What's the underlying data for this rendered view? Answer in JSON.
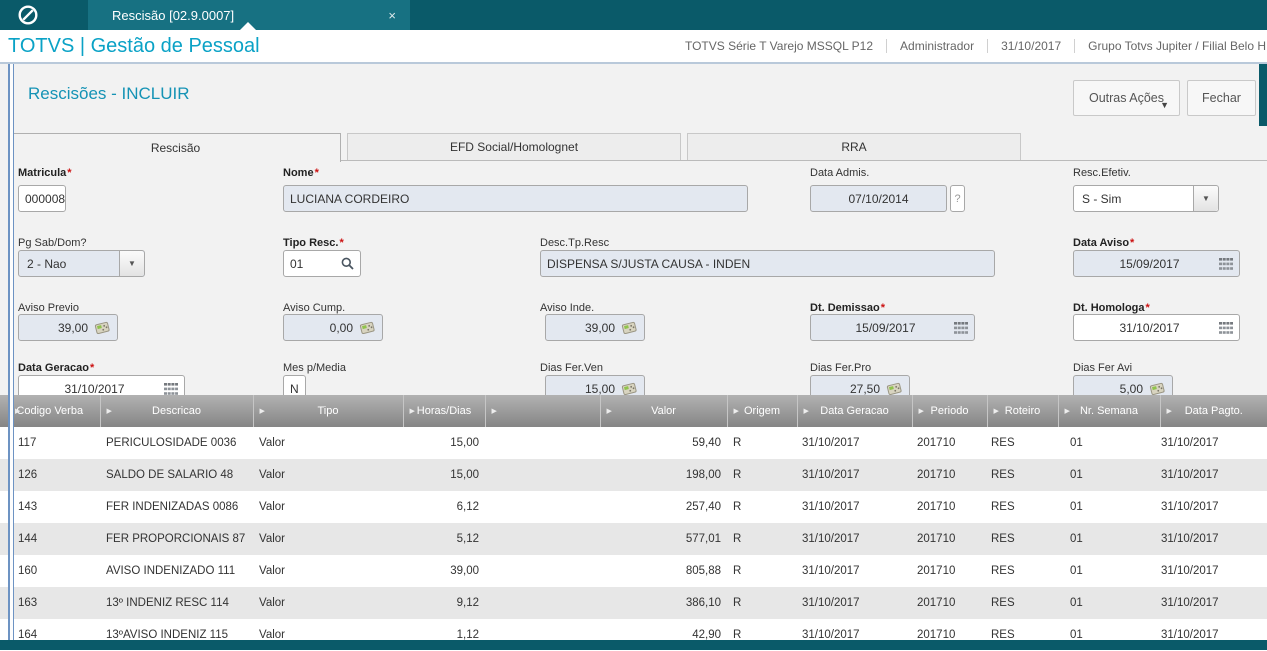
{
  "required_mark": "*",
  "icons": {
    "close": "×",
    "dropdown_arrow": "▼",
    "header_arrow": "▶",
    "help": "?",
    "totvs_logo": "circle-slash",
    "calendar": "calendar-grid",
    "calculator": "calculator",
    "search": "magnifier"
  },
  "topbar": {
    "tab_label": "Rescisão [02.9.0007]"
  },
  "header": {
    "brand": "TOTVS | Gestão de Pessoal",
    "info": [
      "TOTVS Série T Varejo MSSQL P12",
      "Administrador",
      "31/10/2017",
      "Grupo Totvs Jupiter / Filial Belo H"
    ]
  },
  "page": {
    "title": "Rescisões - INCLUIR",
    "buttons": {
      "outras_acoes": "Outras Ações",
      "fechar": "Fechar"
    }
  },
  "tabs": [
    {
      "label": "Rescisão"
    },
    {
      "label": "EFD Social/Homolognet"
    },
    {
      "label": "RRA"
    }
  ],
  "form": {
    "matricula": {
      "label": "Matricula",
      "value": "000008",
      "required": true
    },
    "nome": {
      "label": "Nome",
      "value": "LUCIANA CORDEIRO",
      "required": true
    },
    "data_admis": {
      "label": "Data Admis.",
      "value": "07/10/2014",
      "required": false
    },
    "resc_efetiv": {
      "label": "Resc.Efetiv.",
      "value": "S - Sim",
      "required": false
    },
    "pg_sab_dom": {
      "label": "Pg Sab/Dom?",
      "value": "2 - Nao",
      "required": false
    },
    "tipo_resc": {
      "label": "Tipo Resc.",
      "value": "01",
      "required": true
    },
    "desc_tp_resc": {
      "label": "Desc.Tp.Resc",
      "value": "DISPENSA S/JUSTA CAUSA - INDEN",
      "required": false
    },
    "data_aviso": {
      "label": "Data Aviso",
      "value": "15/09/2017",
      "required": true
    },
    "aviso_previo": {
      "label": "Aviso Previo",
      "value": "39,00",
      "required": false
    },
    "aviso_cump": {
      "label": "Aviso Cump.",
      "value": "0,00",
      "required": false
    },
    "aviso_inde": {
      "label": "Aviso Inde.",
      "value": "39,00",
      "required": false
    },
    "dt_demissao": {
      "label": "Dt. Demissao",
      "value": "15/09/2017",
      "required": true
    },
    "dt_homologa": {
      "label": "Dt. Homologa",
      "value": "31/10/2017",
      "required": true
    },
    "data_geracao": {
      "label": "Data Geracao",
      "value": "31/10/2017",
      "required": true
    },
    "mes_p_media": {
      "label": "Mes p/Media",
      "value": "N",
      "required": false
    },
    "dias_fer_ven": {
      "label": "Dias Fer.Ven",
      "value": "15,00",
      "required": false
    },
    "dias_fer_pro": {
      "label": "Dias Fer.Pro",
      "value": "27,50",
      "required": false
    },
    "dias_fer_avi": {
      "label": "Dias Fer Avi",
      "value": "5,00",
      "required": false
    }
  },
  "table": {
    "columns": [
      {
        "label": "Codigo Verba",
        "width": 100,
        "align": "left",
        "pad": 18
      },
      {
        "label": "Descricao",
        "width": 153,
        "align": "left",
        "pad": 6
      },
      {
        "label": "Tipo",
        "width": 150,
        "align": "left",
        "pad": 6
      },
      {
        "label": "Horas/Dias",
        "width": 82,
        "align": "right",
        "pad": 6
      },
      {
        "label": "",
        "width": 115,
        "align": "left",
        "pad": 6
      },
      {
        "label": "Valor",
        "width": 127,
        "align": "right",
        "pad": 6
      },
      {
        "label": "Origem",
        "width": 70,
        "align": "left",
        "pad": 6
      },
      {
        "label": "Data Geracao",
        "width": 115,
        "align": "left",
        "pad": 5
      },
      {
        "label": "Periodo",
        "width": 75,
        "align": "left",
        "pad": 5
      },
      {
        "label": "Roteiro",
        "width": 71,
        "align": "left",
        "pad": 4
      },
      {
        "label": "Nr. Semana",
        "width": 102,
        "align": "left",
        "pad": 12
      },
      {
        "label": "Data Pagto.",
        "width": 107,
        "align": "right",
        "pad": 57
      }
    ],
    "rows": [
      [
        "117",
        "PERICULOSIDADE 0036",
        "Valor",
        "15,00",
        "",
        "59,40",
        "R",
        "31/10/2017",
        "201710",
        "RES",
        "01",
        "31/10/2017"
      ],
      [
        "126",
        "SALDO DE SALARIO 48",
        "Valor",
        "15,00",
        "",
        "198,00",
        "R",
        "31/10/2017",
        "201710",
        "RES",
        "01",
        "31/10/2017"
      ],
      [
        "143",
        "FER INDENIZADAS 0086",
        "Valor",
        "6,12",
        "",
        "257,40",
        "R",
        "31/10/2017",
        "201710",
        "RES",
        "01",
        "31/10/2017"
      ],
      [
        "144",
        "FER PROPORCIONAIS 87",
        "Valor",
        "5,12",
        "",
        "577,01",
        "R",
        "31/10/2017",
        "201710",
        "RES",
        "01",
        "31/10/2017"
      ],
      [
        "160",
        "AVISO INDENIZADO 111",
        "Valor",
        "39,00",
        "",
        "805,88",
        "R",
        "31/10/2017",
        "201710",
        "RES",
        "01",
        "31/10/2017"
      ],
      [
        "163",
        "13º INDENIZ RESC 114",
        "Valor",
        "9,12",
        "",
        "386,10",
        "R",
        "31/10/2017",
        "201710",
        "RES",
        "01",
        "31/10/2017"
      ],
      [
        "164",
        "13ºAVISO INDENIZ 115",
        "Valor",
        "1,12",
        "",
        "42,90",
        "R",
        "31/10/2017",
        "201710",
        "RES",
        "01",
        "31/10/2017"
      ]
    ]
  },
  "colors": {
    "topbar_bg": "#0a5a69",
    "tab_bg": "#177182",
    "brand_text": "#0aa2c6",
    "title_text": "#1593b5",
    "header_divider": "#b9c9da",
    "required": "#cc1111",
    "frame": "#6d93c3",
    "input_disabled_bg": "#e3e8f0",
    "input_border": "#a8a8a8",
    "th_from": "#b2b2b2",
    "th_to": "#858585",
    "row_alt": "#e7e7e7",
    "footer_bg": "#0a5a69"
  }
}
